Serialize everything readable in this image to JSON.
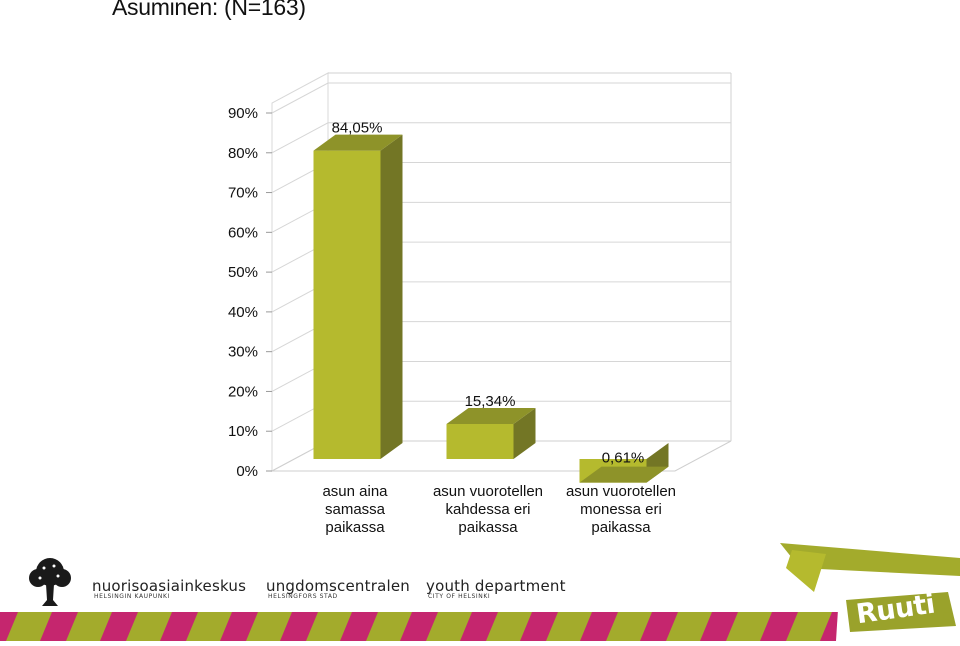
{
  "title": "Asuminen: (N=163)",
  "chart_data": {
    "type": "bar",
    "title": "Asuminen: (N=163)",
    "categories": [
      [
        "asun aina",
        "samassa",
        "paikassa"
      ],
      [
        "asun vuorotellen",
        "kahdessa eri",
        "paikassa"
      ],
      [
        "asun vuorotellen",
        "monessa eri",
        "paikassa"
      ]
    ],
    "values": [
      84.05,
      15.34,
      0.61
    ],
    "value_labels": [
      "84,05%",
      "15,34%",
      "0,61%"
    ],
    "yticks": [
      "0%",
      "10%",
      "20%",
      "30%",
      "40%",
      "50%",
      "60%",
      "70%",
      "80%",
      "90%"
    ],
    "ylim": [
      0,
      90
    ],
    "grid": true,
    "legend": "none",
    "colors": {
      "front": "#b5ba2e",
      "side": "#737625",
      "top": "#8e9329"
    }
  },
  "footer": {
    "logos": [
      {
        "main": "nuorisoasiainkeskus",
        "sub": "HELSINGIN KAUPUNKI"
      },
      {
        "main": "ungdomscentralen",
        "sub": "HELSINGFORS STAD"
      },
      {
        "main": "youth department",
        "sub": "CITY OF HELSINKI"
      }
    ],
    "brand": "Ruuti",
    "colors": {
      "stripe_green": "#a3ab2c",
      "stripe_pink": "#c5266e",
      "brand_green": "#9aa22b",
      "tree": "#1a1a1a"
    }
  }
}
